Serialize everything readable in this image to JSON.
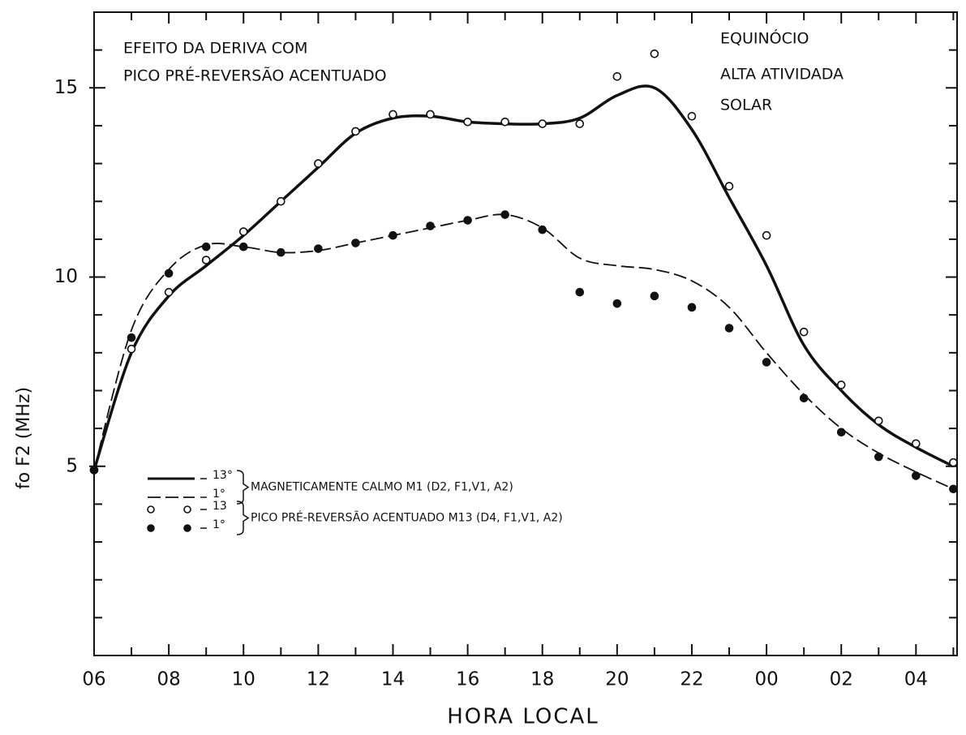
{
  "chart_data": {
    "type": "line",
    "annotations": [
      "EFEITO DA DERIVA COM",
      "PICO PRÉ-REVERSÃO ACENTUADO",
      "EQUINÓCIO",
      "ALTA ATIVIDADA",
      "SOLAR"
    ],
    "x_label": "HORA LOCAL",
    "y_label": "fo F2 (MHz)",
    "x": [
      6,
      7,
      8,
      9,
      10,
      11,
      12,
      13,
      14,
      15,
      16,
      17,
      18,
      19,
      20,
      21,
      22,
      23,
      24,
      25,
      26,
      27,
      28,
      29
    ],
    "xlim": [
      6,
      29.1
    ],
    "xticks": [
      {
        "value": 6,
        "label": "06"
      },
      {
        "value": 8,
        "label": "08"
      },
      10,
      12,
      14,
      16,
      18,
      20,
      22,
      {
        "value": 24,
        "label": "00"
      },
      {
        "value": 26,
        "label": "02"
      },
      {
        "value": 28,
        "label": "04"
      }
    ],
    "xminorticks": [
      7,
      9,
      11,
      13,
      15,
      17,
      19,
      21,
      23,
      25,
      27,
      29
    ],
    "ylim": [
      0,
      17
    ],
    "yticks": [
      5,
      10,
      15
    ],
    "yminorticks": [
      1,
      2,
      3,
      4,
      6,
      7,
      8,
      9,
      11,
      12,
      13,
      14,
      16
    ],
    "legend_groups": [
      "MAGNETICAMENTE CALMO M1 (D2, F1,V1, A2)",
      "PICO PRÉ-REVERSÃO ACENTUADO M13 (D4, F1,V1, A2)"
    ],
    "series": [
      {
        "name": "13°",
        "group": 0,
        "style": "solid",
        "color": "#111",
        "values": [
          4.9,
          8.0,
          9.5,
          10.3,
          11.1,
          12.0,
          12.9,
          13.8,
          14.2,
          14.25,
          14.1,
          14.05,
          14.05,
          14.2,
          14.8,
          15.0,
          13.9,
          12.1,
          10.3,
          8.2,
          7.0,
          6.1,
          5.5,
          5.0
        ]
      },
      {
        "name": "1°",
        "group": 0,
        "style": "dashed",
        "color": "#111",
        "values": [
          4.9,
          8.6,
          10.2,
          10.85,
          10.8,
          10.65,
          10.7,
          10.9,
          11.1,
          11.3,
          11.5,
          11.65,
          11.3,
          10.5,
          10.3,
          10.2,
          9.9,
          9.2,
          8.0,
          6.9,
          6.0,
          5.35,
          4.85,
          4.4
        ]
      },
      {
        "name": "13",
        "group": 1,
        "style": "open-circle",
        "color": "#111",
        "values": [
          4.9,
          8.1,
          9.6,
          10.45,
          11.2,
          12.0,
          13.0,
          13.85,
          14.3,
          14.3,
          14.1,
          14.1,
          14.05,
          14.05,
          15.3,
          15.9,
          14.25,
          12.4,
          11.1,
          8.55,
          7.15,
          6.2,
          5.6,
          5.1
        ]
      },
      {
        "name": "1°",
        "group": 1,
        "style": "filled-circle",
        "color": "#111",
        "values": [
          4.9,
          8.4,
          10.1,
          10.8,
          10.8,
          10.65,
          10.75,
          10.9,
          11.1,
          11.35,
          11.5,
          11.65,
          11.25,
          9.6,
          9.3,
          9.5,
          9.2,
          8.65,
          7.75,
          6.8,
          5.9,
          5.25,
          4.75,
          4.4
        ]
      }
    ]
  }
}
